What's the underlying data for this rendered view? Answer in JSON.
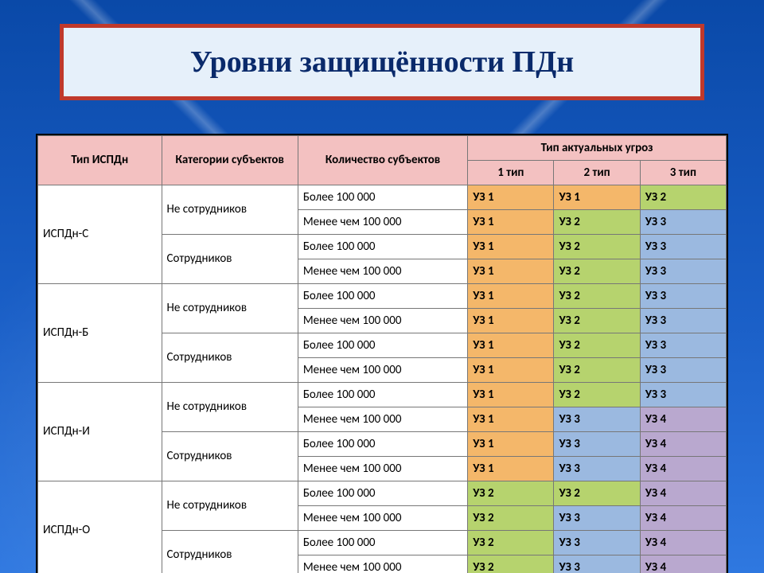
{
  "title": "Уровни защищённости ПДн",
  "headers": {
    "type": "Тип ИСПДн",
    "category": "Категории субъектов",
    "count": "Количество субъектов",
    "threat_group": "Тип актуальных угроз",
    "t1": "1 тип",
    "t2": "2 тип",
    "t3": "3 тип"
  },
  "header_bg": "#f3c1c1",
  "colors": {
    "uz1": "#f4b76a",
    "uz2": "#b6d36e",
    "uz3": "#9bb9e0",
    "uz4": "#b9a8cf"
  },
  "categories": [
    "Не сотрудников",
    "Сотрудников"
  ],
  "counts": [
    "Более 100 000",
    "Менее чем 100 000"
  ],
  "groups": [
    {
      "name": "ИСПДн-С",
      "rows": [
        {
          "cat": 0,
          "count": 0,
          "uz": [
            "УЗ 1",
            "УЗ 1",
            "УЗ 2"
          ]
        },
        {
          "cat": 0,
          "count": 1,
          "uz": [
            "УЗ 1",
            "УЗ 2",
            "УЗ 3"
          ]
        },
        {
          "cat": 1,
          "count": 0,
          "uz": [
            "УЗ 1",
            "УЗ 2",
            "УЗ 3"
          ]
        },
        {
          "cat": 1,
          "count": 1,
          "uz": [
            "УЗ 1",
            "УЗ 2",
            "УЗ 3"
          ]
        }
      ]
    },
    {
      "name": "ИСПДн-Б",
      "rows": [
        {
          "cat": 0,
          "count": 0,
          "uz": [
            "УЗ 1",
            "УЗ 2",
            "УЗ 3"
          ]
        },
        {
          "cat": 0,
          "count": 1,
          "uz": [
            "УЗ 1",
            "УЗ 2",
            "УЗ 3"
          ]
        },
        {
          "cat": 1,
          "count": 0,
          "uz": [
            "УЗ 1",
            "УЗ 2",
            "УЗ 3"
          ]
        },
        {
          "cat": 1,
          "count": 1,
          "uz": [
            "УЗ 1",
            "УЗ 2",
            "УЗ 3"
          ]
        }
      ]
    },
    {
      "name": "ИСПДн-И",
      "rows": [
        {
          "cat": 0,
          "count": 0,
          "uz": [
            "УЗ 1",
            "УЗ 2",
            "УЗ 3"
          ]
        },
        {
          "cat": 0,
          "count": 1,
          "uz": [
            "УЗ 1",
            "УЗ 3",
            "УЗ 4"
          ]
        },
        {
          "cat": 1,
          "count": 0,
          "uz": [
            "УЗ 1",
            "УЗ 3",
            "УЗ 4"
          ]
        },
        {
          "cat": 1,
          "count": 1,
          "uz": [
            "УЗ 1",
            "УЗ 3",
            "УЗ 4"
          ]
        }
      ]
    },
    {
      "name": "ИСПДн-О",
      "rows": [
        {
          "cat": 0,
          "count": 0,
          "uz": [
            "УЗ 2",
            "УЗ 2",
            "УЗ 4"
          ]
        },
        {
          "cat": 0,
          "count": 1,
          "uz": [
            "УЗ 2",
            "УЗ 3",
            "УЗ 4"
          ]
        },
        {
          "cat": 1,
          "count": 0,
          "uz": [
            "УЗ 2",
            "УЗ 3",
            "УЗ 4"
          ]
        },
        {
          "cat": 1,
          "count": 1,
          "uz": [
            "УЗ 2",
            "УЗ 3",
            "УЗ 4"
          ]
        }
      ]
    }
  ]
}
